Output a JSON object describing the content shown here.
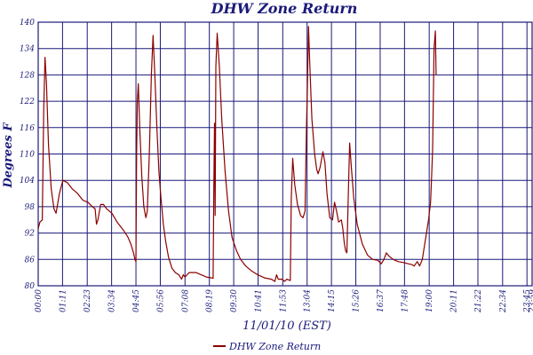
{
  "chart_data": {
    "type": "line",
    "title": "DHW Zone Return",
    "xlabel": "11/01/10 (EST)",
    "ylabel": "Degrees F",
    "ylim": [
      80,
      140
    ],
    "y_ticks": [
      80,
      86,
      92,
      98,
      104,
      110,
      116,
      122,
      128,
      134,
      140
    ],
    "xlim_minutes": [
      0,
      1440
    ],
    "x_ticks": [
      "00:00",
      "01:11",
      "02:23",
      "03:34",
      "04:45",
      "05:56",
      "07:08",
      "08:19",
      "09:30",
      "10:41",
      "11:53",
      "13:04",
      "14:15",
      "15:26",
      "16:37",
      "17:48",
      "19:00",
      "20:11",
      "21:22",
      "22:34",
      "23:45"
    ],
    "x_tick_minutes": [
      0,
      71,
      143,
      214,
      285,
      356,
      428,
      499,
      570,
      641,
      713,
      784,
      855,
      926,
      997,
      1068,
      1140,
      1211,
      1282,
      1354,
      1425
    ],
    "x_end_label": "23:59",
    "grid": true,
    "legend_position": "bottom-center",
    "colors": {
      "series": "#8b0000",
      "grid": "#1a1a7a",
      "text": "#1a1a7a"
    },
    "series": [
      {
        "name": "DHW Zone Return",
        "points": [
          [
            0,
            93
          ],
          [
            5,
            94.5
          ],
          [
            12,
            95
          ],
          [
            16,
            120
          ],
          [
            20,
            132
          ],
          [
            24,
            126
          ],
          [
            30,
            112
          ],
          [
            38,
            102
          ],
          [
            46,
            97.5
          ],
          [
            52,
            96.5
          ],
          [
            62,
            101
          ],
          [
            72,
            104
          ],
          [
            85,
            103.5
          ],
          [
            100,
            102
          ],
          [
            115,
            101
          ],
          [
            130,
            99.5
          ],
          [
            145,
            99
          ],
          [
            158,
            98
          ],
          [
            166,
            97.5
          ],
          [
            170,
            94
          ],
          [
            174,
            95
          ],
          [
            182,
            98.5
          ],
          [
            190,
            98.5
          ],
          [
            200,
            97.5
          ],
          [
            215,
            96.5
          ],
          [
            230,
            94.5
          ],
          [
            250,
            92.5
          ],
          [
            262,
            91
          ],
          [
            270,
            89.5
          ],
          [
            278,
            87.5
          ],
          [
            282,
            86
          ],
          [
            285,
            85.5
          ],
          [
            287,
            110
          ],
          [
            289,
            122
          ],
          [
            292,
            126
          ],
          [
            296,
            116
          ],
          [
            302,
            105
          ],
          [
            308,
            98
          ],
          [
            314,
            95.5
          ],
          [
            318,
            97
          ],
          [
            324,
            110
          ],
          [
            330,
            128
          ],
          [
            335,
            137
          ],
          [
            340,
            128
          ],
          [
            346,
            116
          ],
          [
            352,
            106
          ],
          [
            358,
            100
          ],
          [
            365,
            94
          ],
          [
            372,
            90
          ],
          [
            380,
            86.5
          ],
          [
            390,
            84
          ],
          [
            400,
            83
          ],
          [
            410,
            82.5
          ],
          [
            418,
            81.5
          ],
          [
            423,
            82.5
          ],
          [
            428,
            82
          ],
          [
            440,
            83
          ],
          [
            460,
            83
          ],
          [
            475,
            82.5
          ],
          [
            490,
            82
          ],
          [
            505,
            81.8
          ],
          [
            510,
            81.7
          ],
          [
            512,
            102
          ],
          [
            514,
            117
          ],
          [
            516,
            96
          ],
          [
            518,
            130
          ],
          [
            522,
            137.5
          ],
          [
            528,
            130
          ],
          [
            535,
            118
          ],
          [
            545,
            106
          ],
          [
            555,
            97
          ],
          [
            565,
            91
          ],
          [
            578,
            88
          ],
          [
            590,
            86
          ],
          [
            605,
            84.5
          ],
          [
            620,
            83.5
          ],
          [
            640,
            82.5
          ],
          [
            660,
            81.8
          ],
          [
            680,
            81.5
          ],
          [
            690,
            81
          ],
          [
            695,
            82.5
          ],
          [
            700,
            81.5
          ],
          [
            712,
            81.5
          ],
          [
            718,
            81
          ],
          [
            725,
            81.5
          ],
          [
            735,
            81.2
          ],
          [
            738,
            100
          ],
          [
            742,
            109
          ],
          [
            748,
            103
          ],
          [
            756,
            98.5
          ],
          [
            765,
            96
          ],
          [
            772,
            95.5
          ],
          [
            778,
            97
          ],
          [
            782,
            115
          ],
          [
            785,
            126
          ],
          [
            788,
            139
          ],
          [
            792,
            130
          ],
          [
            798,
            118
          ],
          [
            806,
            110
          ],
          [
            812,
            106.5
          ],
          [
            816,
            105.5
          ],
          [
            822,
            107
          ],
          [
            830,
            110.5
          ],
          [
            836,
            108
          ],
          [
            842,
            101
          ],
          [
            850,
            95.5
          ],
          [
            858,
            95
          ],
          [
            864,
            99
          ],
          [
            870,
            97
          ],
          [
            876,
            94.5
          ],
          [
            884,
            95
          ],
          [
            888,
            93
          ],
          [
            892,
            90
          ],
          [
            896,
            88
          ],
          [
            900,
            87.5
          ],
          [
            904,
            100
          ],
          [
            908,
            112.5
          ],
          [
            913,
            107
          ],
          [
            920,
            100
          ],
          [
            930,
            94
          ],
          [
            945,
            89.5
          ],
          [
            960,
            87
          ],
          [
            975,
            86
          ],
          [
            990,
            85.8
          ],
          [
            1000,
            85
          ],
          [
            1008,
            86
          ],
          [
            1015,
            87.5
          ],
          [
            1022,
            86.8
          ],
          [
            1035,
            86
          ],
          [
            1050,
            85.5
          ],
          [
            1065,
            85.3
          ],
          [
            1080,
            85
          ],
          [
            1090,
            84.8
          ],
          [
            1096,
            84.5
          ],
          [
            1105,
            85.5
          ],
          [
            1112,
            84.5
          ],
          [
            1120,
            86
          ],
          [
            1130,
            91
          ],
          [
            1138,
            95
          ],
          [
            1144,
            99
          ],
          [
            1147,
            105
          ],
          [
            1150,
            111
          ],
          [
            1154,
            134
          ],
          [
            1158,
            138
          ],
          [
            1160,
            128
          ]
        ]
      }
    ]
  }
}
